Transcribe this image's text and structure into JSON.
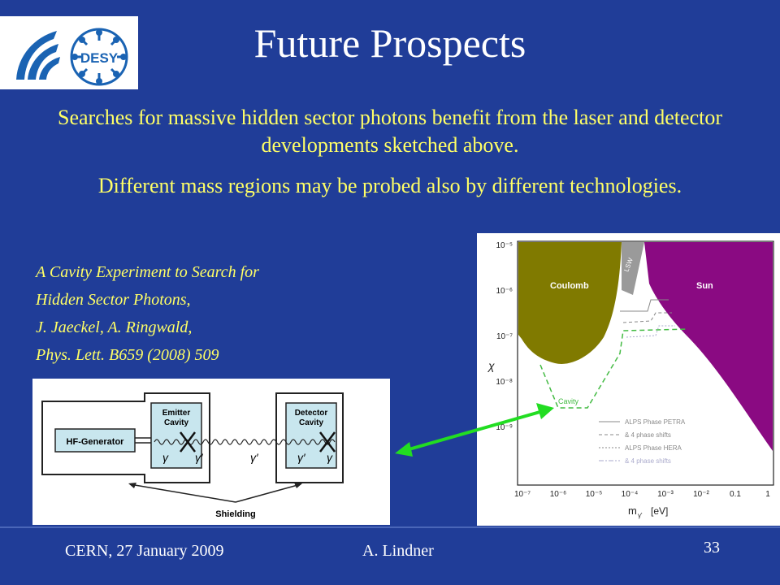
{
  "title": "Future Prospects",
  "paragraphs": [
    "Searches for massive hidden sector photons benefit from the laser and detector developments sketched above.",
    "Different mass regions may be probed also by different technologies."
  ],
  "reference": [
    "A Cavity Experiment to Search for",
    "Hidden Sector Photons,",
    "J. Jaeckel, A. Ringwald,",
    "Phys. Lett. B659 (2008) 509"
  ],
  "logo": {
    "text": "DESY"
  },
  "diagram": {
    "hf_generator": "HF-Generator",
    "emitter_line1": "Emitter",
    "emitter_line2": "Cavity",
    "detector_line1": "Detector",
    "detector_line2": "Cavity",
    "shielding": "Shielding",
    "gamma": "γ",
    "gamma_prime": "γ′"
  },
  "plot": {
    "ylabel": "χ",
    "xlabel": "m",
    "xlabel_sub": "γ'",
    "xlabel_unit": "[eV]",
    "y_ticks": [
      "10⁻⁵",
      "10⁻⁶",
      "10⁻⁷",
      "10⁻⁸",
      "10⁻⁹"
    ],
    "x_ticks": [
      "10⁻⁷",
      "10⁻⁶",
      "10⁻⁵",
      "10⁻⁴",
      "10⁻³",
      "10⁻²",
      "0.1",
      "1"
    ],
    "regions": {
      "coulomb": "Coulomb",
      "sun": "Sun",
      "lsw": "LSW",
      "cavity": "Cavity"
    },
    "legend": [
      "ALPS Phase PETRA",
      "& 4 phase shifts",
      "ALPS Phase HERA",
      "& 4 phase shifts"
    ],
    "colors": {
      "coulomb": "#807a00",
      "sun": "#8a0a82",
      "lsw": "#9a9a9a",
      "cavity": "#44bb44"
    }
  },
  "footer": {
    "left": "CERN, 27 January 2009",
    "author": "A. Lindner",
    "page": "33"
  },
  "colors": {
    "background": "#203d98",
    "highlight_text": "#ffff66",
    "arrow": "#22dd22"
  }
}
